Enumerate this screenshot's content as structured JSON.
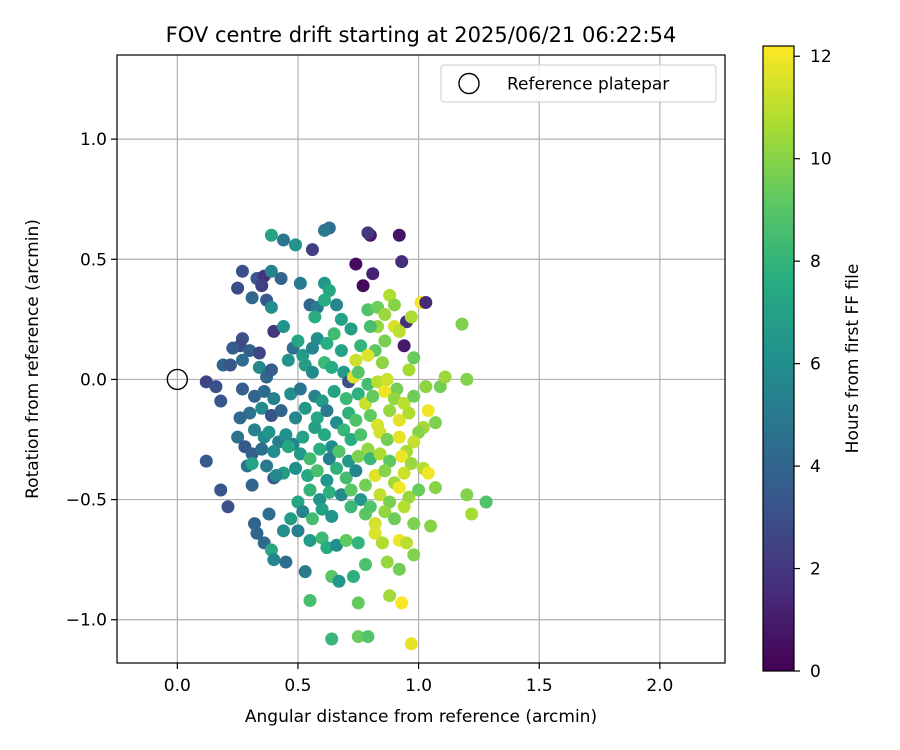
{
  "chart_data": {
    "type": "scatter",
    "title": "FOV centre drift starting at 2025/06/21 06:22:54",
    "xlabel": "Angular distance from reference (arcmin)",
    "ylabel": "Rotation from reference (arcmin)",
    "xlim": [
      -0.25,
      2.27
    ],
    "ylim": [
      -1.18,
      1.35
    ],
    "xticks": [
      0.0,
      0.5,
      1.0,
      1.5,
      2.0
    ],
    "xtick_labels": [
      "0.0",
      "0.5",
      "1.0",
      "1.5",
      "2.0"
    ],
    "yticks": [
      1.0,
      0.5,
      0.0,
      -0.5,
      -1.0
    ],
    "ytick_labels": [
      "1.0",
      "0.5",
      "0.0",
      "−0.5",
      "−1.0"
    ],
    "grid": true,
    "colormap": "viridis",
    "colorbar": {
      "label": "Hours from first FF file",
      "range": [
        0,
        12.2
      ],
      "ticks": [
        0,
        2,
        4,
        6,
        8,
        10,
        12
      ],
      "tick_labels": [
        "0",
        "2",
        "4",
        "6",
        "8",
        "10",
        "12"
      ]
    },
    "legend": {
      "position": "top-right",
      "entries": [
        "Reference platepar"
      ]
    },
    "reference_point": {
      "x": 0.0,
      "y": 0.0
    },
    "points": [
      [
        0.63,
        0.63,
        4.5
      ],
      [
        0.61,
        0.62,
        5.0
      ],
      [
        0.56,
        0.54,
        2.3
      ],
      [
        0.8,
        0.6,
        0.8
      ],
      [
        0.79,
        0.61,
        2.0
      ],
      [
        0.92,
        0.6,
        0.7
      ],
      [
        0.44,
        0.58,
        4.8
      ],
      [
        0.39,
        0.6,
        7.0
      ],
      [
        0.49,
        0.56,
        6.3
      ],
      [
        0.74,
        0.48,
        0.4
      ],
      [
        0.81,
        0.44,
        1.2
      ],
      [
        0.93,
        0.49,
        1.6
      ],
      [
        0.27,
        0.45,
        3.0
      ],
      [
        0.33,
        0.42,
        3.5
      ],
      [
        0.36,
        0.43,
        1.8
      ],
      [
        0.39,
        0.45,
        5.5
      ],
      [
        0.43,
        0.42,
        4.0
      ],
      [
        0.51,
        0.4,
        5.0
      ],
      [
        0.61,
        0.4,
        6.5
      ],
      [
        0.63,
        0.37,
        7.3
      ],
      [
        0.77,
        0.39,
        0.3
      ],
      [
        0.25,
        0.38,
        2.8
      ],
      [
        0.35,
        0.39,
        2.4
      ],
      [
        0.31,
        0.34,
        4.2
      ],
      [
        0.37,
        0.33,
        3.5
      ],
      [
        0.39,
        0.3,
        6.0
      ],
      [
        0.55,
        0.31,
        4.0
      ],
      [
        0.58,
        0.3,
        5.2
      ],
      [
        0.66,
        0.31,
        5.7
      ],
      [
        0.61,
        0.33,
        7.5
      ],
      [
        0.79,
        0.29,
        8.8
      ],
      [
        0.83,
        0.3,
        9.5
      ],
      [
        0.86,
        0.27,
        10.4
      ],
      [
        0.88,
        0.35,
        10.8
      ],
      [
        0.9,
        0.31,
        10.0
      ],
      [
        0.95,
        0.24,
        1.7
      ],
      [
        0.97,
        0.26,
        10.7
      ],
      [
        1.01,
        0.32,
        12.0
      ],
      [
        1.03,
        0.32,
        1.5
      ],
      [
        1.18,
        0.23,
        9.8
      ],
      [
        0.57,
        0.26,
        7.7
      ],
      [
        0.68,
        0.25,
        7.0
      ],
      [
        0.83,
        0.22,
        10.3
      ],
      [
        0.9,
        0.22,
        11.5
      ],
      [
        0.92,
        0.2,
        11.0
      ],
      [
        0.27,
        0.17,
        3.2
      ],
      [
        0.26,
        0.14,
        2.7
      ],
      [
        0.23,
        0.13,
        3.6
      ],
      [
        0.3,
        0.12,
        3.8
      ],
      [
        0.34,
        0.11,
        2.6
      ],
      [
        0.4,
        0.2,
        2.0
      ],
      [
        0.44,
        0.22,
        6.2
      ],
      [
        0.48,
        0.13,
        4.5
      ],
      [
        0.5,
        0.16,
        7.2
      ],
      [
        0.52,
        0.1,
        6.6
      ],
      [
        0.56,
        0.13,
        5.5
      ],
      [
        0.58,
        0.17,
        6.0
      ],
      [
        0.62,
        0.15,
        7.6
      ],
      [
        0.65,
        0.19,
        8.4
      ],
      [
        0.68,
        0.12,
        7.0
      ],
      [
        0.72,
        0.21,
        6.8
      ],
      [
        0.76,
        0.14,
        8.0
      ],
      [
        0.8,
        0.22,
        8.6
      ],
      [
        0.82,
        0.12,
        9.1
      ],
      [
        0.86,
        0.16,
        9.7
      ],
      [
        0.94,
        0.14,
        0.9
      ],
      [
        0.98,
        0.09,
        9.4
      ],
      [
        0.79,
        0.1,
        11.6
      ],
      [
        0.85,
        0.07,
        10.1
      ],
      [
        0.74,
        0.08,
        11.3
      ],
      [
        0.19,
        0.06,
        4.0
      ],
      [
        0.22,
        0.06,
        3.3
      ],
      [
        0.27,
        0.08,
        4.4
      ],
      [
        0.34,
        0.05,
        5.7
      ],
      [
        0.37,
        0.01,
        4.1
      ],
      [
        0.39,
        0.04,
        3.6
      ],
      [
        0.46,
        0.08,
        6.3
      ],
      [
        0.53,
        0.06,
        6.8
      ],
      [
        0.56,
        0.03,
        5.9
      ],
      [
        0.61,
        0.07,
        8.2
      ],
      [
        0.64,
        0.05,
        7.5
      ],
      [
        0.69,
        0.03,
        6.6
      ],
      [
        0.71,
        -0.01,
        3.0
      ],
      [
        0.73,
        0.01,
        11.6
      ],
      [
        0.75,
        0.03,
        9.0
      ],
      [
        0.79,
        -0.02,
        8.5
      ],
      [
        0.83,
        -0.01,
        10.9
      ],
      [
        0.87,
        0.0,
        11.3
      ],
      [
        0.91,
        -0.04,
        9.6
      ],
      [
        0.96,
        0.04,
        10.6
      ],
      [
        1.03,
        -0.03,
        10.1
      ],
      [
        1.09,
        -0.03,
        9.6
      ],
      [
        1.11,
        0.01,
        10.4
      ],
      [
        1.2,
        0.0,
        9.9
      ],
      [
        0.12,
        -0.01,
        2.5
      ],
      [
        0.16,
        -0.03,
        3.0
      ],
      [
        0.18,
        -0.09,
        3.3
      ],
      [
        0.27,
        -0.04,
        3.7
      ],
      [
        0.32,
        -0.07,
        3.9
      ],
      [
        0.36,
        -0.05,
        4.3
      ],
      [
        0.4,
        -0.08,
        5.2
      ],
      [
        0.47,
        -0.06,
        6.0
      ],
      [
        0.51,
        -0.04,
        4.8
      ],
      [
        0.57,
        -0.07,
        5.4
      ],
      [
        0.6,
        -0.09,
        6.7
      ],
      [
        0.65,
        -0.05,
        7.1
      ],
      [
        0.7,
        -0.08,
        8.3
      ],
      [
        0.75,
        -0.06,
        7.8
      ],
      [
        0.78,
        -0.1,
        11.2
      ],
      [
        0.81,
        -0.07,
        9.3
      ],
      [
        0.86,
        -0.05,
        11.9
      ],
      [
        0.9,
        -0.08,
        10.2
      ],
      [
        0.94,
        -0.1,
        11.0
      ],
      [
        0.98,
        -0.07,
        9.5
      ],
      [
        1.04,
        -0.13,
        12.0
      ],
      [
        1.07,
        -0.18,
        9.8
      ],
      [
        1.02,
        -0.2,
        10.5
      ],
      [
        0.3,
        -0.14,
        4.6
      ],
      [
        0.35,
        -0.12,
        5.8
      ],
      [
        0.39,
        -0.15,
        3.1
      ],
      [
        0.43,
        -0.13,
        4.0
      ],
      [
        0.49,
        -0.16,
        5.6
      ],
      [
        0.53,
        -0.12,
        6.5
      ],
      [
        0.58,
        -0.16,
        7.3
      ],
      [
        0.62,
        -0.13,
        5.0
      ],
      [
        0.66,
        -0.18,
        6.1
      ],
      [
        0.71,
        -0.14,
        7.9
      ],
      [
        0.74,
        -0.17,
        8.8
      ],
      [
        0.8,
        -0.15,
        9.2
      ],
      [
        0.83,
        -0.19,
        11.5
      ],
      [
        0.88,
        -0.13,
        10.3
      ],
      [
        0.92,
        -0.17,
        11.7
      ],
      [
        0.96,
        -0.14,
        10.8
      ],
      [
        1.0,
        -0.22,
        10.0
      ],
      [
        0.26,
        -0.16,
        4.2
      ],
      [
        0.25,
        -0.24,
        4.6
      ],
      [
        0.28,
        -0.28,
        3.4
      ],
      [
        0.32,
        -0.21,
        5.3
      ],
      [
        0.36,
        -0.24,
        5.8
      ],
      [
        0.38,
        -0.22,
        6.4
      ],
      [
        0.42,
        -0.26,
        5.1
      ],
      [
        0.45,
        -0.23,
        6.2
      ],
      [
        0.48,
        -0.27,
        5.5
      ],
      [
        0.52,
        -0.24,
        7.0
      ],
      [
        0.57,
        -0.2,
        6.9
      ],
      [
        0.61,
        -0.23,
        7.4
      ],
      [
        0.64,
        -0.28,
        5.9
      ],
      [
        0.69,
        -0.21,
        8.1
      ],
      [
        0.72,
        -0.25,
        7.6
      ],
      [
        0.76,
        -0.23,
        8.7
      ],
      [
        0.79,
        -0.29,
        10.2
      ],
      [
        0.84,
        -0.22,
        11.4
      ],
      [
        0.87,
        -0.25,
        9.6
      ],
      [
        0.92,
        -0.24,
        11.8
      ],
      [
        0.95,
        -0.3,
        10.6
      ],
      [
        0.98,
        -0.26,
        11.2
      ],
      [
        0.31,
        -0.31,
        3.8
      ],
      [
        0.35,
        -0.29,
        4.5
      ],
      [
        0.4,
        -0.3,
        6.0
      ],
      [
        0.46,
        -0.28,
        7.3
      ],
      [
        0.51,
        -0.31,
        6.6
      ],
      [
        0.55,
        -0.33,
        8.4
      ],
      [
        0.59,
        -0.29,
        7.7
      ],
      [
        0.63,
        -0.33,
        5.2
      ],
      [
        0.67,
        -0.3,
        8.9
      ],
      [
        0.71,
        -0.34,
        6.5
      ],
      [
        0.75,
        -0.32,
        9.8
      ],
      [
        0.8,
        -0.33,
        8.2
      ],
      [
        0.84,
        -0.31,
        10.7
      ],
      [
        0.88,
        -0.34,
        9.2
      ],
      [
        0.93,
        -0.32,
        11.9
      ],
      [
        0.97,
        -0.35,
        10.4
      ],
      [
        0.29,
        -0.36,
        4.7
      ],
      [
        0.31,
        -0.35,
        7.1
      ],
      [
        0.37,
        -0.36,
        5.0
      ],
      [
        0.4,
        -0.41,
        3.4
      ],
      [
        0.44,
        -0.39,
        6.8
      ],
      [
        0.49,
        -0.37,
        6.1
      ],
      [
        0.54,
        -0.4,
        7.4
      ],
      [
        0.58,
        -0.38,
        8.6
      ],
      [
        0.62,
        -0.42,
        6.4
      ],
      [
        0.66,
        -0.37,
        7.9
      ],
      [
        0.7,
        -0.41,
        8.5
      ],
      [
        0.74,
        -0.38,
        5.6
      ],
      [
        0.78,
        -0.44,
        9.6
      ],
      [
        0.82,
        -0.4,
        11.7
      ],
      [
        0.86,
        -0.38,
        10.0
      ],
      [
        0.9,
        -0.43,
        10.5
      ],
      [
        0.94,
        -0.39,
        11.3
      ],
      [
        1.02,
        -0.37,
        10.9
      ],
      [
        1.04,
        -0.39,
        12.0
      ],
      [
        0.12,
        -0.34,
        3.6
      ],
      [
        0.31,
        -0.44,
        4.1
      ],
      [
        0.18,
        -0.46,
        3.3
      ],
      [
        0.21,
        -0.53,
        3.0
      ],
      [
        0.41,
        -0.4,
        5.7
      ],
      [
        0.55,
        -0.46,
        8.0
      ],
      [
        0.59,
        -0.5,
        6.2
      ],
      [
        0.63,
        -0.47,
        7.8
      ],
      [
        0.68,
        -0.48,
        5.8
      ],
      [
        0.72,
        -0.46,
        9.1
      ],
      [
        0.76,
        -0.5,
        6.5
      ],
      [
        0.8,
        -0.53,
        8.9
      ],
      [
        0.84,
        -0.48,
        11.1
      ],
      [
        0.88,
        -0.51,
        9.7
      ],
      [
        0.92,
        -0.45,
        12.0
      ],
      [
        0.96,
        -0.49,
        10.3
      ],
      [
        1.0,
        -0.46,
        9.4
      ],
      [
        1.07,
        -0.45,
        10.0
      ],
      [
        1.2,
        -0.48,
        9.9
      ],
      [
        1.28,
        -0.51,
        8.8
      ],
      [
        1.22,
        -0.56,
        10.6
      ],
      [
        0.5,
        -0.51,
        7.2
      ],
      [
        0.47,
        -0.58,
        6.8
      ],
      [
        0.52,
        -0.55,
        5.5
      ],
      [
        0.56,
        -0.58,
        8.5
      ],
      [
        0.6,
        -0.54,
        7.0
      ],
      [
        0.64,
        -0.57,
        6.3
      ],
      [
        0.72,
        -0.53,
        8.2
      ],
      [
        0.78,
        -0.56,
        9.0
      ],
      [
        0.82,
        -0.6,
        11.4
      ],
      [
        0.86,
        -0.55,
        10.2
      ],
      [
        0.9,
        -0.58,
        9.5
      ],
      [
        0.94,
        -0.53,
        10.9
      ],
      [
        0.98,
        -0.6,
        9.8
      ],
      [
        1.05,
        -0.61,
        10.0
      ],
      [
        0.33,
        -0.64,
        4.1
      ],
      [
        0.32,
        -0.6,
        3.9
      ],
      [
        0.38,
        -0.56,
        4.4
      ],
      [
        0.36,
        -0.68,
        4.3
      ],
      [
        0.44,
        -0.63,
        6.0
      ],
      [
        0.5,
        -0.63,
        5.3
      ],
      [
        0.55,
        -0.67,
        6.7
      ],
      [
        0.6,
        -0.66,
        8.3
      ],
      [
        0.62,
        -0.7,
        7.5
      ],
      [
        0.66,
        -0.69,
        6.1
      ],
      [
        0.7,
        -0.67,
        9.2
      ],
      [
        0.75,
        -0.68,
        8.0
      ],
      [
        0.82,
        -0.64,
        11.6
      ],
      [
        0.85,
        -0.68,
        10.8
      ],
      [
        0.92,
        -0.67,
        11.9
      ],
      [
        0.95,
        -0.68,
        11.0
      ],
      [
        0.39,
        -0.71,
        7.4
      ],
      [
        0.4,
        -0.75,
        5.6
      ],
      [
        0.45,
        -0.76,
        4.5
      ],
      [
        0.53,
        -0.8,
        5.1
      ],
      [
        0.78,
        -0.77,
        8.7
      ],
      [
        0.87,
        -0.76,
        10.3
      ],
      [
        0.92,
        -0.79,
        9.6
      ],
      [
        0.98,
        -0.73,
        9.9
      ],
      [
        0.73,
        -0.82,
        7.8
      ],
      [
        0.64,
        -0.82,
        9.0
      ],
      [
        0.67,
        -0.84,
        6.4
      ],
      [
        0.88,
        -0.9,
        10.5
      ],
      [
        0.93,
        -0.93,
        12.1
      ],
      [
        0.55,
        -0.92,
        8.6
      ],
      [
        0.75,
        -0.93,
        9.3
      ],
      [
        0.64,
        -1.08,
        8.1
      ],
      [
        0.75,
        -1.07,
        9.4
      ],
      [
        0.79,
        -1.07,
        8.9
      ],
      [
        0.97,
        -1.1,
        11.8
      ]
    ]
  }
}
